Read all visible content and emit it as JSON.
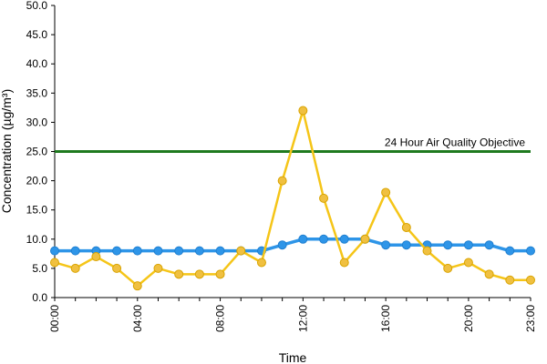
{
  "chart_data": {
    "type": "line",
    "title": "",
    "xlabel": "Time",
    "ylabel": "Concentration (µg/m³)",
    "ylim": [
      0,
      50
    ],
    "yticks": [
      "0.0",
      "5.0",
      "10.0",
      "15.0",
      "20.0",
      "25.0",
      "30.0",
      "35.0",
      "40.0",
      "45.0",
      "50.0"
    ],
    "x": [
      "00:00",
      "01:00",
      "02:00",
      "03:00",
      "04:00",
      "05:00",
      "06:00",
      "07:00",
      "08:00",
      "09:00",
      "10:00",
      "11:00",
      "12:00",
      "13:00",
      "14:00",
      "15:00",
      "16:00",
      "17:00",
      "18:00",
      "19:00",
      "20:00",
      "21:00",
      "22:00",
      "23:00"
    ],
    "xtick_labels": [
      "00:00",
      "04:00",
      "08:00",
      "12:00",
      "16:00",
      "20:00",
      "23:00"
    ],
    "grid": false,
    "legend": "none",
    "series": [
      {
        "color": "#f5c518",
        "values": [
          6,
          5,
          7,
          5,
          2,
          5,
          4,
          4,
          4,
          8,
          6,
          20,
          32,
          17,
          6,
          10,
          18,
          12,
          8,
          5,
          6,
          4,
          3,
          3
        ]
      },
      {
        "color": "#2e95e8",
        "values": [
          8,
          8,
          8,
          8,
          8,
          8,
          8,
          8,
          8,
          8,
          8,
          9,
          10,
          10,
          10,
          10,
          9,
          9,
          9,
          9,
          9,
          9,
          8,
          8
        ]
      }
    ],
    "reference_line": {
      "value": 25,
      "label": "24 Hour Air Quality Objective",
      "color": "#1f7a1f"
    }
  }
}
